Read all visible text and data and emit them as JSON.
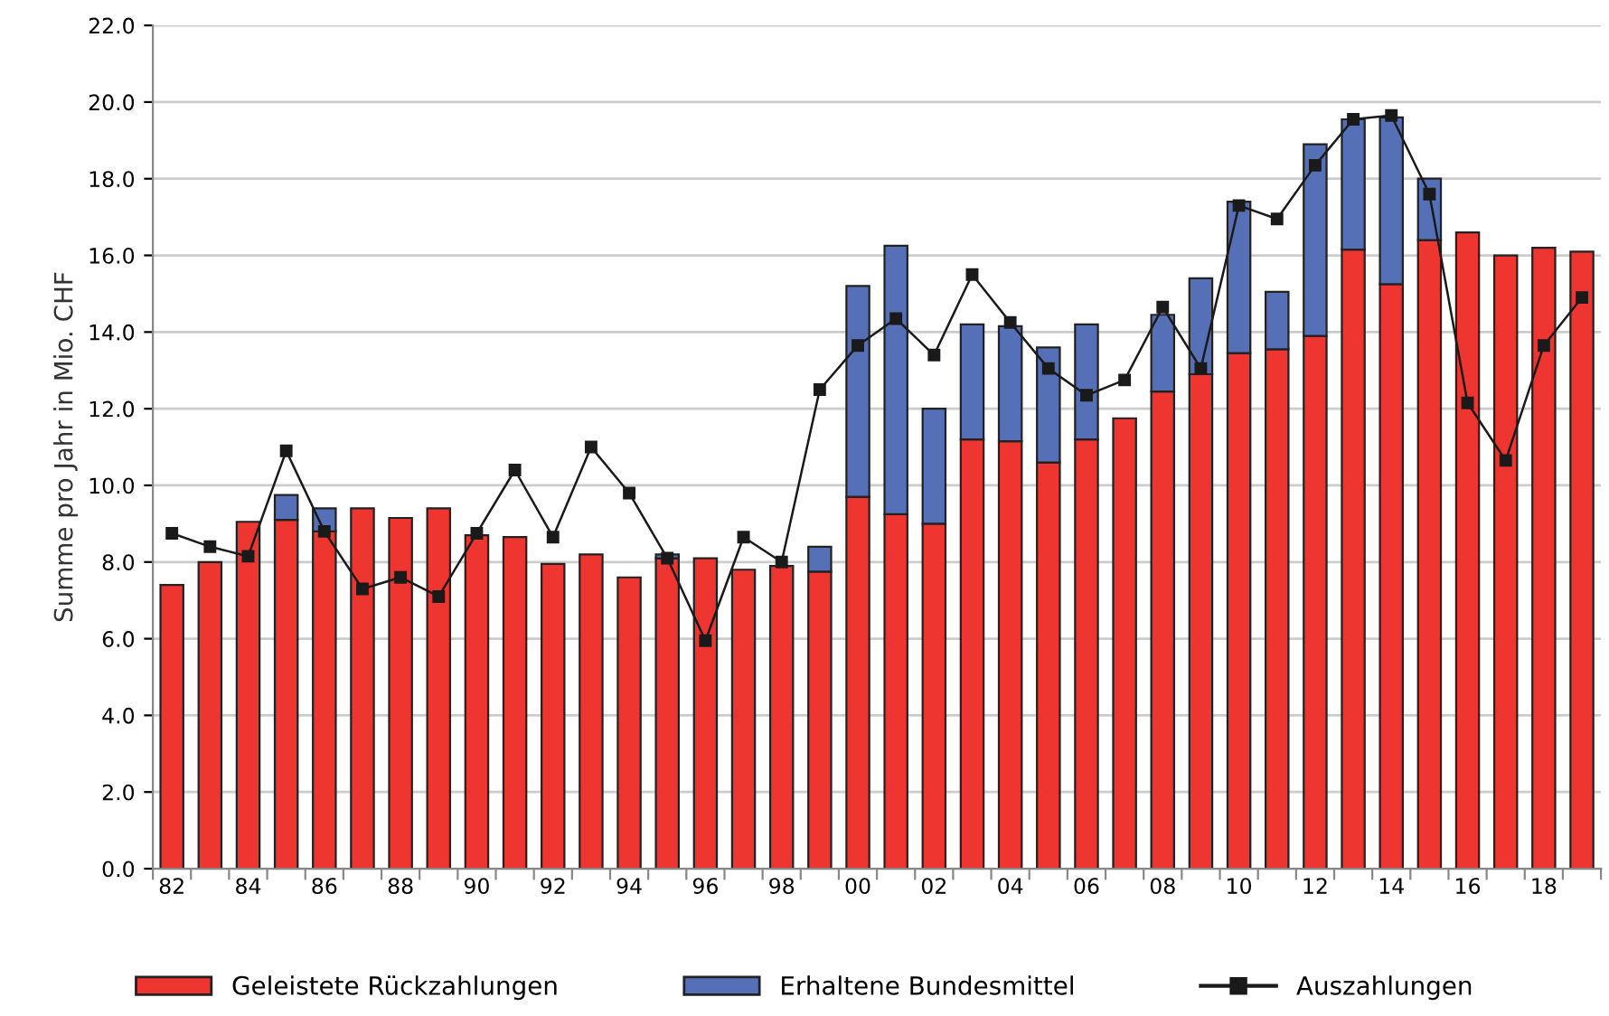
{
  "chart_data": {
    "type": "bar",
    "stacked": true,
    "ylabel": "Summe pro Jahr in Mio. CHF",
    "categories": [
      "82",
      null,
      "84",
      null,
      "86",
      null,
      "88",
      null,
      "90",
      null,
      "92",
      null,
      "94",
      null,
      "96",
      null,
      "98",
      null,
      "00",
      null,
      "02",
      null,
      "04",
      null,
      "06",
      null,
      "08",
      null,
      "10",
      null,
      "12",
      null,
      "14",
      null,
      "16",
      null,
      "18",
      null
    ],
    "series": [
      {
        "name": "Geleistete Rückzahlungen",
        "color": "#ee3530",
        "values": [
          7.4,
          8.0,
          9.05,
          9.1,
          8.8,
          9.4,
          9.15,
          9.4,
          8.7,
          8.65,
          7.95,
          8.2,
          7.6,
          8.1,
          8.1,
          7.8,
          7.9,
          7.75,
          9.7,
          9.25,
          9.0,
          11.2,
          11.15,
          10.6,
          11.2,
          11.75,
          12.45,
          12.9,
          13.45,
          13.55,
          13.9,
          16.15,
          15.25,
          16.4,
          16.6,
          16.0,
          16.2,
          16.1
        ]
      },
      {
        "name": "Erhaltene Bundesmittel",
        "color": "#5670b8",
        "values": [
          null,
          null,
          null,
          0.65,
          0.6,
          null,
          null,
          null,
          null,
          null,
          null,
          null,
          null,
          0.1,
          null,
          null,
          null,
          0.65,
          5.5,
          7.0,
          3.0,
          3.0,
          3.0,
          3.0,
          3.0,
          null,
          2.0,
          2.5,
          3.95,
          1.5,
          5.0,
          3.4,
          4.35,
          1.6,
          null,
          null,
          null,
          null
        ]
      },
      {
        "name": "Auszahlungen",
        "type": "line",
        "color": "#1a1a1a",
        "marker": "square",
        "line_style": "solid",
        "values": [
          8.75,
          8.4,
          8.15,
          10.9,
          8.8,
          7.3,
          7.6,
          7.1,
          8.75,
          10.4,
          8.65,
          11.0,
          9.8,
          8.1,
          5.95,
          8.65,
          8.0,
          12.5,
          13.65,
          14.35,
          13.4,
          15.5,
          14.25,
          13.05,
          12.35,
          12.75,
          14.65,
          13.05,
          17.3,
          16.95,
          18.35,
          19.55,
          19.65,
          17.6,
          12.15,
          10.65,
          13.65,
          14.9
        ]
      }
    ],
    "ylim": [
      0,
      22
    ],
    "yticks": [
      {
        "value": 0,
        "label": "0.0"
      },
      {
        "value": 2,
        "label": "2.0"
      },
      {
        "value": 4,
        "label": "4.0"
      },
      {
        "value": 6,
        "label": "6.0"
      },
      {
        "value": 8,
        "label": "8.0"
      },
      {
        "value": 10,
        "label": "10.0"
      },
      {
        "value": 12,
        "label": "12.0"
      },
      {
        "value": 14,
        "label": "14.0"
      },
      {
        "value": 16,
        "label": "16.0"
      },
      {
        "value": 18,
        "label": "18.0"
      },
      {
        "value": 20,
        "label": "20.0"
      },
      {
        "value": 22,
        "label": "22.0"
      }
    ],
    "grid": "y",
    "legend": "bottom"
  }
}
